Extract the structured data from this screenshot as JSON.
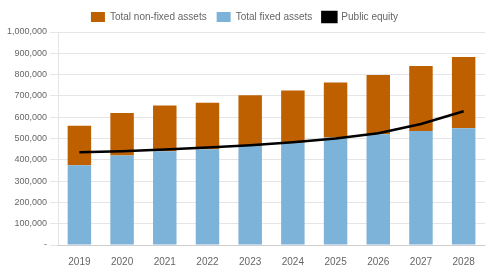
{
  "chart_data": {
    "type": "bar",
    "stacked": true,
    "categories": [
      "2019",
      "2020",
      "2021",
      "2022",
      "2023",
      "2024",
      "2025",
      "2026",
      "2027",
      "2028"
    ],
    "series": [
      {
        "name": "Total fixed assets",
        "color": "#7db3d8",
        "values": [
          375000,
          420000,
          440000,
          450000,
          465000,
          480000,
          505000,
          520000,
          535000,
          548000
        ]
      },
      {
        "name": "Total non-fixed assets",
        "color": "#bf6000",
        "values": [
          185000,
          200000,
          215000,
          218000,
          238000,
          245000,
          258000,
          278000,
          305000,
          335000
        ]
      },
      {
        "name": "Public equity",
        "type": "line",
        "color": "#000000",
        "values": [
          435000,
          440000,
          448000,
          458000,
          468000,
          482000,
          500000,
          525000,
          568000,
          628000
        ]
      }
    ],
    "ylim": [
      0,
      1000000
    ],
    "yticks": [
      {
        "value": 0,
        "label": "-"
      },
      {
        "value": 100000,
        "label": "100,000"
      },
      {
        "value": 200000,
        "label": "200,000"
      },
      {
        "value": 300000,
        "label": "300,000"
      },
      {
        "value": 400000,
        "label": "400,000"
      },
      {
        "value": 500000,
        "label": "500,000"
      },
      {
        "value": 600000,
        "label": "600,000"
      },
      {
        "value": 700000,
        "label": "700,000"
      },
      {
        "value": 800000,
        "label": "800,000"
      },
      {
        "value": 900000,
        "label": "900,000"
      },
      {
        "value": 1000000,
        "label": "1,000,000"
      }
    ],
    "grid": true,
    "legend": "top"
  }
}
